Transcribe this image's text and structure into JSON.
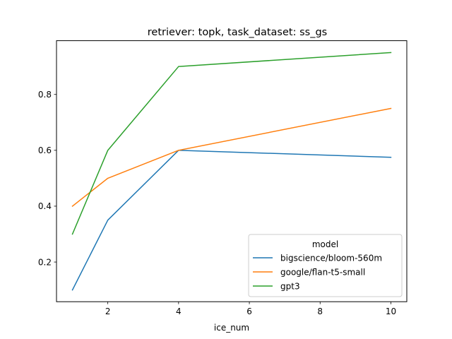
{
  "chart_data": {
    "type": "line",
    "title": "retriever: topk, task_dataset: ss_gs",
    "xlabel": "ice_num",
    "ylabel": "",
    "xlim": [
      0.55,
      10.45
    ],
    "ylim": [
      0.058,
      0.9925
    ],
    "xticks": [
      2,
      4,
      6,
      8,
      10
    ],
    "yticks": [
      0.2,
      0.4,
      0.6,
      0.8
    ],
    "x": [
      1,
      2,
      4,
      10
    ],
    "legend": {
      "title": "model",
      "placement": "lower-right"
    },
    "grid": false,
    "series": [
      {
        "name": "bigscience/bloom-560m",
        "color": "#1f77b4",
        "values": [
          0.1,
          0.35,
          0.6,
          0.575
        ]
      },
      {
        "name": "google/flan-t5-small",
        "color": "#ff7f0e",
        "values": [
          0.4,
          0.5,
          0.6,
          0.75
        ]
      },
      {
        "name": "gpt3",
        "color": "#2ca02c",
        "values": [
          0.3,
          0.6,
          0.9,
          0.95
        ]
      }
    ]
  }
}
